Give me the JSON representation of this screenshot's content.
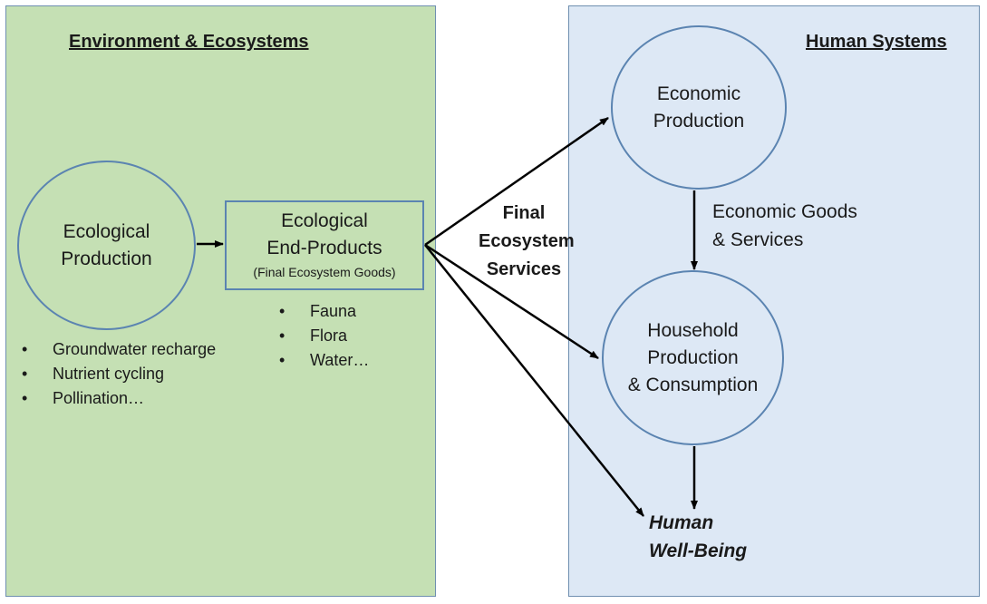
{
  "panels": {
    "environment": {
      "title": "Environment & Ecosystems"
    },
    "human": {
      "title": "Human Systems"
    }
  },
  "nodes": {
    "ecological_production": "Ecological\nProduction",
    "ecological_end_products": {
      "label": "Ecological\nEnd-Products",
      "sublabel": "(Final Ecosystem Goods)"
    },
    "economic_production": "Economic\nProduction",
    "household": "Household\nProduction\n& Consumption",
    "human_well_being": "Human\nWell-Being"
  },
  "lists": {
    "ecological_production_examples": [
      "Groundwater recharge",
      "Nutrient cycling",
      "Pollination…"
    ],
    "end_product_examples": [
      "Fauna",
      "Flora",
      "Water…"
    ]
  },
  "edge_labels": {
    "final_ecosystem_services": "Final\nEcosystem\nServices",
    "economic_goods_services": "Economic Goods\n& Services"
  },
  "colors": {
    "environment_bg": "#c5e0b4",
    "human_bg": "#dde8f5",
    "outline": "#5b84b1",
    "arrow": "#000000"
  }
}
